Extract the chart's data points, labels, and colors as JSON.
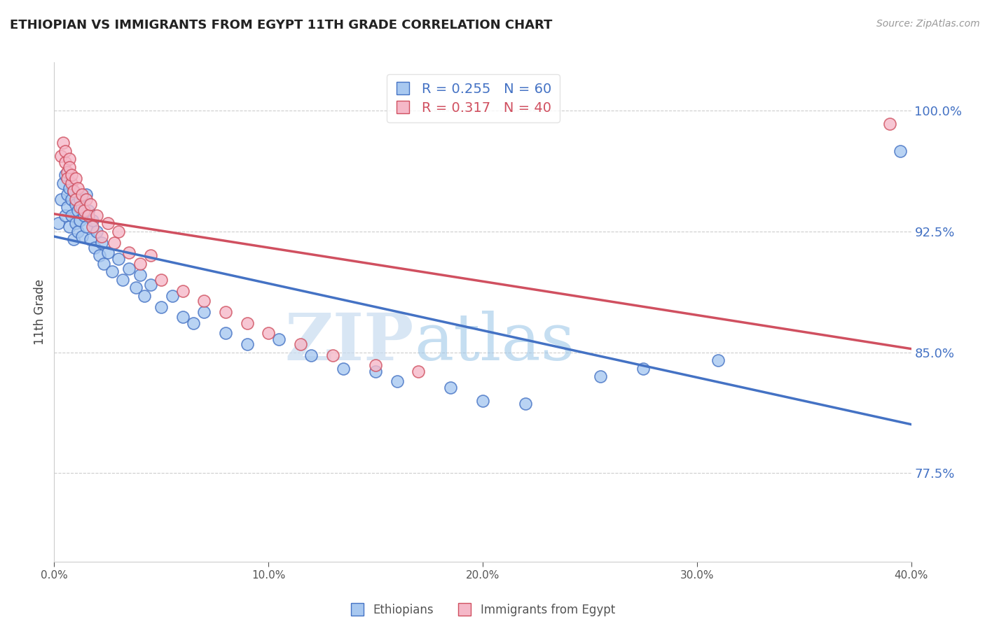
{
  "title": "ETHIOPIAN VS IMMIGRANTS FROM EGYPT 11TH GRADE CORRELATION CHART",
  "source": "Source: ZipAtlas.com",
  "ylabel": "11th Grade",
  "ytick_labels": [
    "100.0%",
    "92.5%",
    "85.0%",
    "77.5%"
  ],
  "ytick_values": [
    1.0,
    0.925,
    0.85,
    0.775
  ],
  "xlim": [
    0.0,
    0.4
  ],
  "ylim": [
    0.72,
    1.03
  ],
  "blue_color": "#A8C8F0",
  "pink_color": "#F5B8C8",
  "line_blue": "#4472C4",
  "line_pink": "#D05060",
  "legend_r_blue": "0.255",
  "legend_n_blue": "60",
  "legend_r_pink": "0.317",
  "legend_n_pink": "40",
  "blue_scatter": [
    [
      0.002,
      0.93
    ],
    [
      0.003,
      0.945
    ],
    [
      0.004,
      0.955
    ],
    [
      0.005,
      0.96
    ],
    [
      0.005,
      0.935
    ],
    [
      0.006,
      0.948
    ],
    [
      0.006,
      0.94
    ],
    [
      0.007,
      0.952
    ],
    [
      0.007,
      0.928
    ],
    [
      0.008,
      0.945
    ],
    [
      0.008,
      0.935
    ],
    [
      0.009,
      0.95
    ],
    [
      0.009,
      0.92
    ],
    [
      0.01,
      0.942
    ],
    [
      0.01,
      0.93
    ],
    [
      0.011,
      0.938
    ],
    [
      0.011,
      0.925
    ],
    [
      0.012,
      0.945
    ],
    [
      0.012,
      0.932
    ],
    [
      0.013,
      0.94
    ],
    [
      0.013,
      0.922
    ],
    [
      0.014,
      0.935
    ],
    [
      0.015,
      0.948
    ],
    [
      0.015,
      0.928
    ],
    [
      0.016,
      0.938
    ],
    [
      0.017,
      0.92
    ],
    [
      0.018,
      0.932
    ],
    [
      0.019,
      0.915
    ],
    [
      0.02,
      0.925
    ],
    [
      0.021,
      0.91
    ],
    [
      0.022,
      0.918
    ],
    [
      0.023,
      0.905
    ],
    [
      0.025,
      0.912
    ],
    [
      0.027,
      0.9
    ],
    [
      0.03,
      0.908
    ],
    [
      0.032,
      0.895
    ],
    [
      0.035,
      0.902
    ],
    [
      0.038,
      0.89
    ],
    [
      0.04,
      0.898
    ],
    [
      0.042,
      0.885
    ],
    [
      0.045,
      0.892
    ],
    [
      0.05,
      0.878
    ],
    [
      0.055,
      0.885
    ],
    [
      0.06,
      0.872
    ],
    [
      0.065,
      0.868
    ],
    [
      0.07,
      0.875
    ],
    [
      0.08,
      0.862
    ],
    [
      0.09,
      0.855
    ],
    [
      0.105,
      0.858
    ],
    [
      0.12,
      0.848
    ],
    [
      0.135,
      0.84
    ],
    [
      0.15,
      0.838
    ],
    [
      0.16,
      0.832
    ],
    [
      0.185,
      0.828
    ],
    [
      0.2,
      0.82
    ],
    [
      0.22,
      0.818
    ],
    [
      0.255,
      0.835
    ],
    [
      0.275,
      0.84
    ],
    [
      0.31,
      0.845
    ],
    [
      0.395,
      0.975
    ]
  ],
  "pink_scatter": [
    [
      0.003,
      0.972
    ],
    [
      0.004,
      0.98
    ],
    [
      0.005,
      0.968
    ],
    [
      0.005,
      0.975
    ],
    [
      0.006,
      0.962
    ],
    [
      0.006,
      0.958
    ],
    [
      0.007,
      0.97
    ],
    [
      0.007,
      0.965
    ],
    [
      0.008,
      0.955
    ],
    [
      0.008,
      0.96
    ],
    [
      0.009,
      0.95
    ],
    [
      0.01,
      0.958
    ],
    [
      0.01,
      0.945
    ],
    [
      0.011,
      0.952
    ],
    [
      0.012,
      0.94
    ],
    [
      0.013,
      0.948
    ],
    [
      0.014,
      0.938
    ],
    [
      0.015,
      0.945
    ],
    [
      0.016,
      0.935
    ],
    [
      0.017,
      0.942
    ],
    [
      0.018,
      0.928
    ],
    [
      0.02,
      0.935
    ],
    [
      0.022,
      0.922
    ],
    [
      0.025,
      0.93
    ],
    [
      0.028,
      0.918
    ],
    [
      0.03,
      0.925
    ],
    [
      0.035,
      0.912
    ],
    [
      0.04,
      0.905
    ],
    [
      0.045,
      0.91
    ],
    [
      0.05,
      0.895
    ],
    [
      0.06,
      0.888
    ],
    [
      0.07,
      0.882
    ],
    [
      0.08,
      0.875
    ],
    [
      0.09,
      0.868
    ],
    [
      0.1,
      0.862
    ],
    [
      0.115,
      0.855
    ],
    [
      0.13,
      0.848
    ],
    [
      0.15,
      0.842
    ],
    [
      0.17,
      0.838
    ],
    [
      0.39,
      0.992
    ]
  ],
  "watermark_zip": "ZIP",
  "watermark_atlas": "atlas",
  "background_color": "#FFFFFF",
  "grid_color": "#CCCCCC",
  "xtick_positions": [
    0.0,
    0.1,
    0.2,
    0.3,
    0.4
  ],
  "xtick_labels": [
    "0.0%",
    "10.0%",
    "20.0%",
    "30.0%",
    "40.0%"
  ]
}
